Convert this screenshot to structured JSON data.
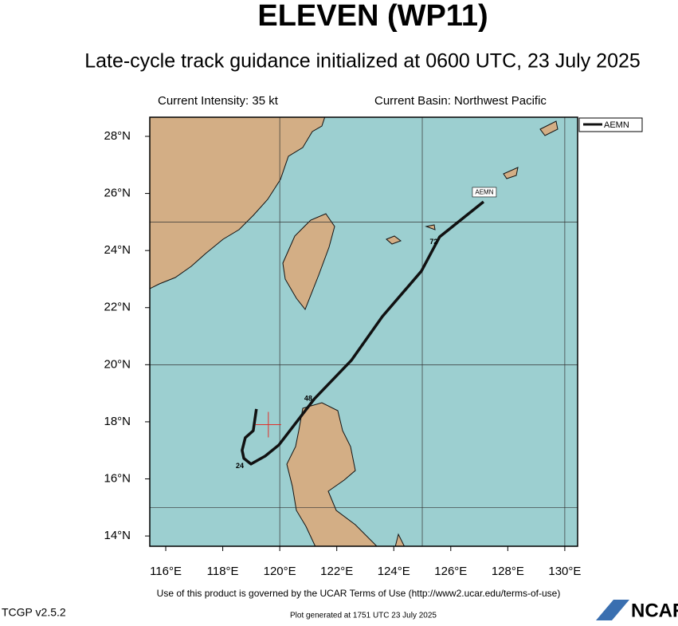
{
  "chart_data": {
    "type": "line",
    "title": "ELEVEN (WP11)",
    "subtitle": "Late-cycle track guidance initialized at 0600 UTC, 23 July 2025",
    "intensity": "Current Intensity: 35 kt",
    "basin": "Current Basin: Northwest Pacific",
    "xlim": [
      115.44,
      130.45
    ],
    "ylim": [
      13.64,
      28.67
    ],
    "xticks": [
      {
        "value": 116,
        "label": "116°E"
      },
      {
        "value": 118,
        "label": "118°E"
      },
      {
        "value": 120,
        "label": "120°E"
      },
      {
        "value": 122,
        "label": "122°E"
      },
      {
        "value": 124,
        "label": "124°E"
      },
      {
        "value": 126,
        "label": "126°E"
      },
      {
        "value": 128,
        "label": "128°E"
      },
      {
        "value": 130,
        "label": "130°E"
      }
    ],
    "yticks": [
      {
        "value": 14,
        "label": "14°N"
      },
      {
        "value": 16,
        "label": "16°N"
      },
      {
        "value": 18,
        "label": "18°N"
      },
      {
        "value": 20,
        "label": "20°N"
      },
      {
        "value": 22,
        "label": "22°N"
      },
      {
        "value": 24,
        "label": "24°N"
      },
      {
        "value": 26,
        "label": "26°N"
      },
      {
        "value": 28,
        "label": "28°N"
      }
    ],
    "grid_x": [
      120,
      125,
      130
    ],
    "grid_y": [
      15,
      20,
      25
    ],
    "series": [
      {
        "name": "AEMN",
        "color": "#111111",
        "x": [
          119.18,
          119.07,
          118.79,
          118.68,
          118.74,
          118.99,
          119.49,
          119.97,
          121.22,
          122.51,
          123.6,
          124.97,
          125.61,
          127.15
        ],
        "values": [
          18.45,
          17.69,
          17.44,
          17.0,
          16.72,
          16.52,
          16.8,
          17.19,
          18.81,
          20.15,
          21.69,
          23.28,
          24.48,
          25.71
        ]
      }
    ],
    "current_position": {
      "x": 119.6,
      "y": 17.9,
      "color": "#e0302a"
    },
    "annotations": [
      {
        "text": "24",
        "x": 118.6,
        "y": 16.45
      },
      {
        "text": "48",
        "x": 121.0,
        "y": 18.8
      },
      {
        "text": "72",
        "x": 125.4,
        "y": 24.3
      }
    ],
    "footer": "Use of this product is governed by the UCAR Terms of Use (http://www2.ucar.edu/terms-of-use)",
    "version": "TCGP v2.5.2",
    "generated": "Plot generated at 1751 UTC   23 July 2025",
    "logo": "NCAR"
  }
}
